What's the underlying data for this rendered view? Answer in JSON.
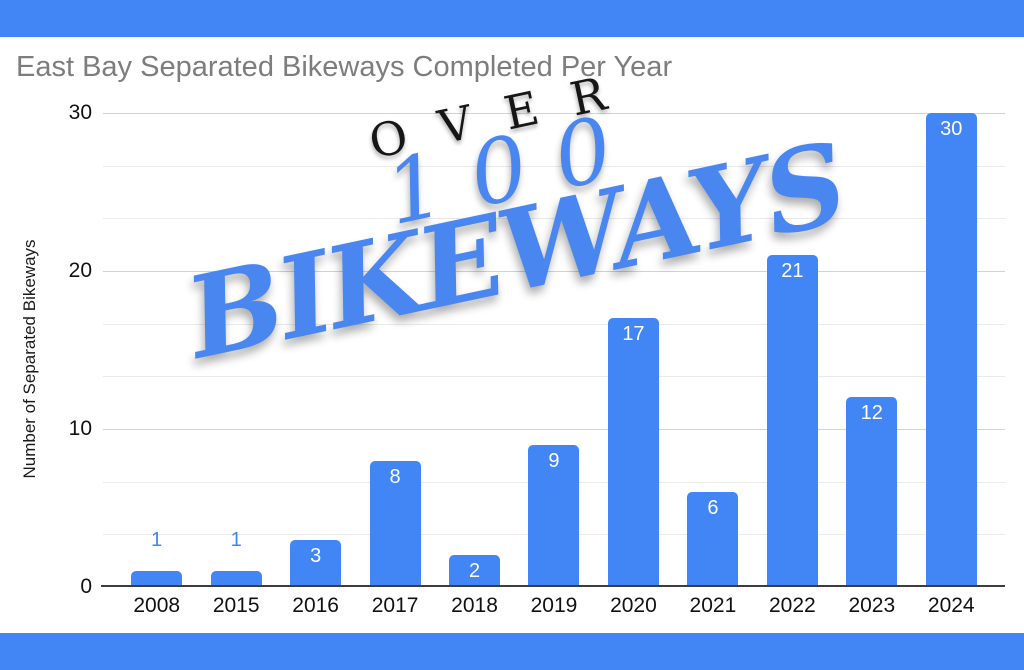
{
  "banner": {
    "color": "#4285f4"
  },
  "overlay": {
    "line1": "OVER",
    "line2": "100",
    "line3": "BIKEWAYS",
    "blue_color": "#4a86f0",
    "black_color": "#161616"
  },
  "chart_data": {
    "type": "bar",
    "title": "East Bay Separated Bikeways Completed Per Year",
    "xlabel": "",
    "ylabel": "Number of Separated Bikeways",
    "categories": [
      "2008",
      "2015",
      "2016",
      "2017",
      "2018",
      "2019",
      "2020",
      "2021",
      "2022",
      "2023",
      "2024"
    ],
    "values": [
      1,
      1,
      3,
      8,
      2,
      9,
      17,
      6,
      21,
      12,
      30
    ],
    "ylim": [
      0,
      30
    ],
    "yticks": [
      0,
      10,
      20,
      30
    ],
    "ytick_labels": [
      "0",
      "10",
      "20",
      "30"
    ],
    "minor_gridlines_per_major": 2,
    "grid": true,
    "legend": "none",
    "bar_color": "#4285f4",
    "value_label_positions": [
      "above",
      "above",
      "inside",
      "inside",
      "inside",
      "inside",
      "inside",
      "inside",
      "inside",
      "inside",
      "inside"
    ],
    "value_label_color_above": "#4285f4",
    "value_label_color_inside": "#ffffff",
    "title_color": "#7d7d7d",
    "axis_line_color": "#3d3d3d",
    "major_gridline_color": "#d2d2d2",
    "minor_gridline_color": "#eaeaea"
  }
}
